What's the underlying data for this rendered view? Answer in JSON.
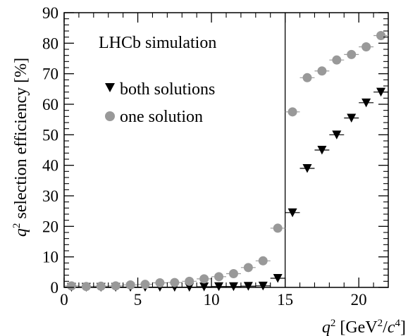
{
  "chart_data": {
    "type": "scatter",
    "title": "",
    "annotation": "LHCb simulation",
    "xlabel": "q² [GeV²/c⁴]",
    "ylabel": "q² selection efficiency [%]",
    "xlim": [
      0,
      22
    ],
    "ylim": [
      0,
      90
    ],
    "x_ticks": [
      0,
      5,
      10,
      15,
      20
    ],
    "y_ticks": [
      0,
      10,
      20,
      30,
      40,
      50,
      60,
      70,
      80,
      90
    ],
    "x_tick_labels": [
      "0",
      "5",
      "10",
      "15",
      "20"
    ],
    "y_tick_labels": [
      "0",
      "10",
      "20",
      "30",
      "40",
      "50",
      "60",
      "70",
      "80",
      "90"
    ],
    "vertical_line_x": 15,
    "bin_halfwidth": 0.5,
    "legend_position": "top-left",
    "series": [
      {
        "name": "both solutions",
        "marker": "triangle-down",
        "color": "#000000",
        "x": [
          0.5,
          1.5,
          2.5,
          3.5,
          4.5,
          5.5,
          6.5,
          7.5,
          8.5,
          9.5,
          10.5,
          11.5,
          12.5,
          13.5,
          14.5,
          15.5,
          16.5,
          17.5,
          18.5,
          19.5,
          20.5,
          21.5
        ],
        "y": [
          0.1,
          0.1,
          0.1,
          0.1,
          0.1,
          0.1,
          0.1,
          0.1,
          0.1,
          0.2,
          0.3,
          0.3,
          0.4,
          0.5,
          3.0,
          24.5,
          39.0,
          45.0,
          50.0,
          55.5,
          60.5,
          64.0
        ]
      },
      {
        "name": "one solution",
        "marker": "circle",
        "color": "#999999",
        "x": [
          0.5,
          1.5,
          2.5,
          3.5,
          4.5,
          5.5,
          6.5,
          7.5,
          8.5,
          9.5,
          10.5,
          11.5,
          12.5,
          13.5,
          14.5,
          15.5,
          16.5,
          17.5,
          18.5,
          19.5,
          20.5,
          21.5
        ],
        "y": [
          0.5,
          0.3,
          0.4,
          0.5,
          0.8,
          1.0,
          1.5,
          1.6,
          2.0,
          2.8,
          3.5,
          4.5,
          6.5,
          8.7,
          19.4,
          57.5,
          68.7,
          70.9,
          74.5,
          76.3,
          78.8,
          82.5
        ]
      }
    ]
  }
}
